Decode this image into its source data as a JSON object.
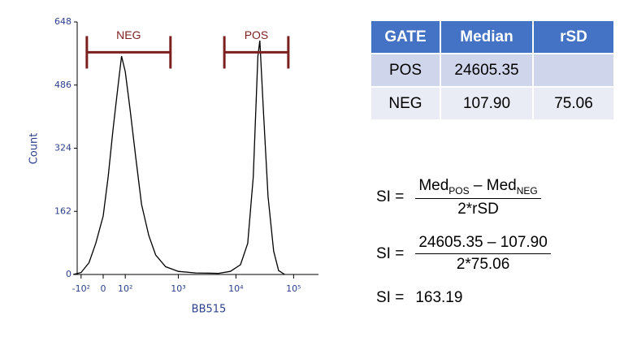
{
  "chart_data": {
    "type": "histogram-line",
    "xlabel": "BB515",
    "ylabel": "Count",
    "xscale": "biexponential",
    "color": "#000000",
    "x": [
      -150,
      -100,
      -60,
      -30,
      0,
      20,
      40,
      60,
      80,
      100,
      130,
      170,
      220,
      300,
      400,
      600,
      1000,
      2000,
      5000,
      8000,
      12000,
      16000,
      20000,
      24000,
      26000,
      30000,
      36000,
      45000,
      55000,
      70000
    ],
    "values": [
      0,
      5,
      30,
      80,
      150,
      250,
      370,
      470,
      560,
      520,
      420,
      300,
      180,
      100,
      50,
      20,
      8,
      4,
      3,
      8,
      25,
      80,
      250,
      560,
      600,
      420,
      200,
      60,
      10,
      0
    ],
    "xlim": [
      -150,
      150000
    ],
    "ylim": [
      0,
      648
    ],
    "xticks": [
      {
        "value": -100,
        "label": "-10²"
      },
      0,
      {
        "value": 100,
        "label": "10²"
      },
      {
        "value": 1000,
        "label": "10³"
      },
      {
        "value": 10000,
        "label": "10⁴"
      },
      {
        "value": 100000,
        "label": "10⁵"
      }
    ],
    "yticks": [
      0,
      162,
      324,
      486,
      648
    ],
    "gates": [
      {
        "name": "NEG",
        "range": [
          -70,
          730
        ],
        "y": 570,
        "color": "#7b1f1f"
      },
      {
        "name": "POS",
        "range": [
          6300,
          81000
        ],
        "y": 570,
        "color": "#7b1f1f"
      }
    ]
  },
  "table": {
    "header": [
      "GATE",
      "Median",
      "rSD"
    ],
    "rows": [
      [
        "POS",
        "24605.35",
        null
      ],
      [
        "NEG",
        "107.90",
        "75.06"
      ]
    ]
  },
  "formulas": [
    {
      "lhs": "SI =",
      "numerator": [
        "Med",
        "POS",
        " – Med",
        "NEG"
      ],
      "denominator": "2*rSD"
    },
    {
      "lhs": "SI =",
      "numerator": [
        "24605.35 – 107.90"
      ],
      "denominator": "2*75.06"
    },
    {
      "lhs": "SI =",
      "result": "163.19"
    }
  ]
}
